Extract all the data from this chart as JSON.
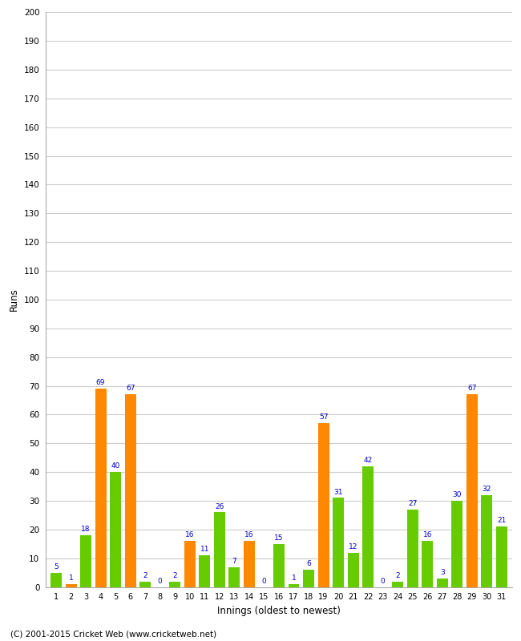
{
  "xlabel": "Innings (oldest to newest)",
  "ylabel": "Runs",
  "ylim": [
    0,
    200
  ],
  "yticks": [
    0,
    10,
    20,
    30,
    40,
    50,
    60,
    70,
    80,
    90,
    100,
    110,
    120,
    130,
    140,
    150,
    160,
    170,
    180,
    190,
    200
  ],
  "innings": [
    1,
    2,
    3,
    4,
    5,
    6,
    7,
    8,
    9,
    10,
    11,
    12,
    13,
    14,
    15,
    16,
    17,
    18,
    19,
    20,
    21,
    22,
    23,
    24,
    25,
    26,
    27,
    28,
    29,
    30,
    31
  ],
  "values": [
    5,
    1,
    18,
    69,
    40,
    67,
    2,
    0,
    2,
    16,
    11,
    26,
    7,
    16,
    0,
    15,
    1,
    6,
    57,
    31,
    12,
    42,
    0,
    2,
    27,
    16,
    3,
    30,
    67,
    32,
    21
  ],
  "colors": [
    "#66cc00",
    "#ff8800",
    "#66cc00",
    "#ff8800",
    "#66cc00",
    "#ff8800",
    "#66cc00",
    "#66cc00",
    "#66cc00",
    "#ff8800",
    "#66cc00",
    "#66cc00",
    "#66cc00",
    "#ff8800",
    "#66cc00",
    "#66cc00",
    "#66cc00",
    "#66cc00",
    "#ff8800",
    "#66cc00",
    "#66cc00",
    "#66cc00",
    "#66cc00",
    "#66cc00",
    "#66cc00",
    "#66cc00",
    "#66cc00",
    "#66cc00",
    "#ff8800",
    "#66cc00",
    "#66cc00"
  ],
  "label_color": "#0000cc",
  "background_color": "#ffffff",
  "grid_color": "#cccccc",
  "footer": "(C) 2001-2015 Cricket Web (www.cricketweb.net)"
}
